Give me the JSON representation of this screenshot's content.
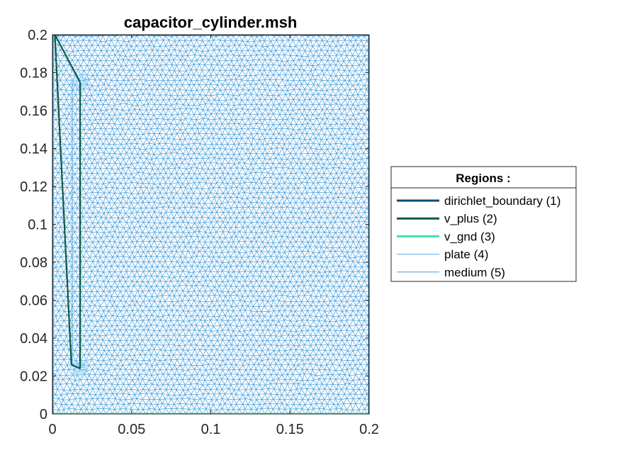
{
  "chart_data": {
    "type": "mesh",
    "title": "capacitor_cylinder.msh",
    "xlim": [
      0,
      0.2
    ],
    "ylim": [
      0,
      0.2
    ],
    "xticks": [
      0,
      0.05,
      0.1,
      0.15,
      0.2
    ],
    "xtick_labels": [
      "0",
      "0.05",
      "0.1",
      "0.15",
      "0.2"
    ],
    "yticks": [
      0,
      0.02,
      0.04,
      0.06,
      0.08,
      0.1,
      0.12,
      0.14,
      0.16,
      0.18,
      0.2
    ],
    "ytick_labels": [
      "0",
      "0.02",
      "0.04",
      "0.06",
      "0.08",
      "0.1",
      "0.12",
      "0.14",
      "0.16",
      "0.18",
      "0.2"
    ],
    "grid": false,
    "legend": {
      "title": "Regions :",
      "placement": "right"
    },
    "series": [
      {
        "name": "dirichlet_boundary (1)",
        "color": "#0b4a76",
        "segments": [
          [
            [
              0,
              0.2
            ],
            [
              0.2,
              0.2
            ]
          ],
          [
            [
              0.2,
              0.2
            ],
            [
              0.2,
              0
            ]
          ],
          [
            [
              0,
              0
            ],
            [
              0,
              0.2
            ]
          ]
        ]
      },
      {
        "name": "v_plus (2)",
        "color": "#0e5a43",
        "segments": [
          [
            [
              0.0015,
              0.2
            ],
            [
              0.012,
              0.026
            ]
          ],
          [
            [
              0.012,
              0.026
            ],
            [
              0.0175,
              0.024
            ]
          ],
          [
            [
              0.0175,
              0.024
            ],
            [
              0.0175,
              0.175
            ]
          ],
          [
            [
              0.0175,
              0.175
            ],
            [
              0.0015,
              0.2
            ]
          ]
        ]
      },
      {
        "name": "v_gnd (3)",
        "color": "#3de2a6",
        "segments": [
          [
            [
              0,
              0
            ],
            [
              0.2,
              0
            ]
          ]
        ]
      },
      {
        "name": "plate (4)",
        "color": "#5aaee6",
        "segments": [
          [
            [
              0.0125,
              0.175
            ],
            [
              0.0125,
              0.025
            ]
          ]
        ]
      },
      {
        "name": "medium (5)",
        "color": "#4aa0dc",
        "segments": []
      }
    ]
  }
}
